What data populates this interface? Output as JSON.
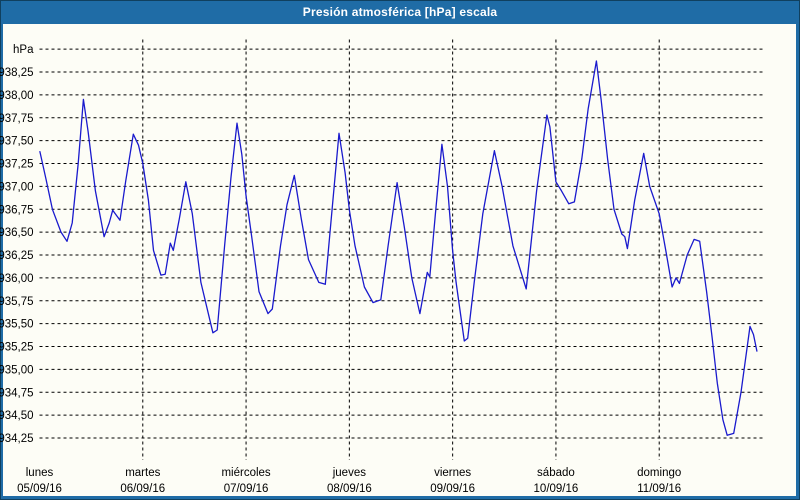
{
  "title_bar": {
    "title": "Presión atmosférica [hPa] escala"
  },
  "colors": {
    "titlebar_bg": "#1f6ca6",
    "titlebar_text": "#ffffff",
    "panel_bg": "#fdfdf6",
    "frame": "#1f6ca6",
    "line": "#1a1acd",
    "grid": "#000000",
    "text": "#000000"
  },
  "chart_data": {
    "type": "line",
    "title": "Presión atmosférica [hPa] escala",
    "ylabel": "hPa",
    "ylim": [
      934.0,
      938.6
    ],
    "grid": "dashed",
    "legend": "none",
    "x_hours_total": 168,
    "ygridlines": [
      938.5,
      938.25,
      938.0,
      937.75,
      937.5,
      937.25,
      937.0,
      936.75,
      936.5,
      936.25,
      936.0,
      935.75,
      935.5,
      935.25,
      935.0,
      934.75,
      934.5,
      934.25
    ],
    "yticks": [
      {
        "value": 938.25,
        "label": "938,25"
      },
      {
        "value": 938.0,
        "label": "938,00"
      },
      {
        "value": 937.75,
        "label": "937,75"
      },
      {
        "value": 937.5,
        "label": "937,50"
      },
      {
        "value": 937.25,
        "label": "937,25"
      },
      {
        "value": 937.0,
        "label": "937,00"
      },
      {
        "value": 936.75,
        "label": "936,75"
      },
      {
        "value": 936.5,
        "label": "936,50"
      },
      {
        "value": 936.25,
        "label": "936,25"
      },
      {
        "value": 936.0,
        "label": "936,00"
      },
      {
        "value": 935.75,
        "label": "935,75"
      },
      {
        "value": 935.5,
        "label": "935,50"
      },
      {
        "value": 935.25,
        "label": "935,25"
      },
      {
        "value": 935.0,
        "label": "935,00"
      },
      {
        "value": 934.75,
        "label": "934,75"
      },
      {
        "value": 934.5,
        "label": "934,50"
      },
      {
        "value": 934.25,
        "label": "934,25"
      }
    ],
    "x_days": [
      {
        "name": "lunes",
        "date": "05/09/16"
      },
      {
        "name": "martes",
        "date": "06/09/16"
      },
      {
        "name": "miércoles",
        "date": "07/09/16"
      },
      {
        "name": "jueves",
        "date": "08/09/16"
      },
      {
        "name": "viernes",
        "date": "09/09/16"
      },
      {
        "name": "sábado",
        "date": "10/09/16"
      },
      {
        "name": "domingo",
        "date": "11/09/16"
      }
    ],
    "series": [
      {
        "name": "Presión atmosférica [hPa]",
        "color": "#1a1acd",
        "points": [
          [
            0.1,
            937.38
          ],
          [
            1.5,
            937.08
          ],
          [
            3.0,
            936.75
          ],
          [
            5.0,
            936.5
          ],
          [
            6.4,
            936.4
          ],
          [
            7.6,
            936.6
          ],
          [
            9.0,
            937.25
          ],
          [
            10.2,
            937.95
          ],
          [
            11.3,
            937.6
          ],
          [
            13.0,
            936.95
          ],
          [
            15.0,
            936.45
          ],
          [
            16.2,
            936.6
          ],
          [
            17.0,
            936.74
          ],
          [
            18.7,
            936.63
          ],
          [
            20.0,
            937.05
          ],
          [
            21.8,
            937.57
          ],
          [
            23.0,
            937.45
          ],
          [
            24.0,
            937.25
          ],
          [
            25.3,
            936.85
          ],
          [
            26.5,
            936.3
          ],
          [
            28.2,
            936.03
          ],
          [
            29.2,
            936.04
          ],
          [
            30.4,
            936.38
          ],
          [
            31.1,
            936.3
          ],
          [
            32.5,
            936.65
          ],
          [
            34.0,
            937.05
          ],
          [
            35.5,
            936.7
          ],
          [
            37.5,
            935.95
          ],
          [
            40.3,
            935.4
          ],
          [
            41.3,
            935.43
          ],
          [
            43.0,
            936.35
          ],
          [
            44.5,
            937.1
          ],
          [
            45.9,
            937.69
          ],
          [
            47.0,
            937.35
          ],
          [
            48.0,
            936.89
          ],
          [
            49.3,
            936.45
          ],
          [
            51.0,
            935.85
          ],
          [
            53.1,
            935.61
          ],
          [
            54.1,
            935.66
          ],
          [
            56.0,
            936.35
          ],
          [
            57.5,
            936.8
          ],
          [
            59.2,
            937.12
          ],
          [
            60.8,
            936.65
          ],
          [
            62.5,
            936.2
          ],
          [
            64.9,
            935.95
          ],
          [
            66.4,
            935.93
          ],
          [
            68.0,
            936.75
          ],
          [
            69.6,
            937.58
          ],
          [
            71.0,
            937.15
          ],
          [
            72.0,
            936.74
          ],
          [
            73.3,
            936.35
          ],
          [
            75.5,
            935.9
          ],
          [
            77.5,
            935.73
          ],
          [
            79.3,
            935.76
          ],
          [
            81.0,
            936.35
          ],
          [
            83.1,
            937.04
          ],
          [
            84.8,
            936.55
          ],
          [
            86.5,
            936.0
          ],
          [
            88.4,
            935.61
          ],
          [
            90.1,
            936.06
          ],
          [
            90.7,
            936.01
          ],
          [
            92.0,
            936.7
          ],
          [
            93.5,
            937.46
          ],
          [
            94.8,
            937.0
          ],
          [
            96.0,
            936.3
          ],
          [
            96.8,
            935.95
          ],
          [
            98.7,
            935.31
          ],
          [
            99.5,
            935.34
          ],
          [
            101.0,
            935.95
          ],
          [
            103.0,
            936.7
          ],
          [
            105.7,
            937.39
          ],
          [
            107.5,
            937.0
          ],
          [
            110.0,
            936.35
          ],
          [
            113.1,
            935.88
          ],
          [
            115.5,
            936.95
          ],
          [
            117.9,
            937.78
          ],
          [
            118.6,
            937.65
          ],
          [
            120.0,
            937.05
          ],
          [
            121.3,
            936.95
          ],
          [
            123.0,
            936.81
          ],
          [
            124.3,
            936.83
          ],
          [
            126.0,
            937.3
          ],
          [
            127.5,
            937.85
          ],
          [
            129.4,
            938.37
          ],
          [
            130.5,
            937.95
          ],
          [
            132.0,
            937.3
          ],
          [
            133.5,
            936.75
          ],
          [
            135.3,
            936.48
          ],
          [
            136.0,
            936.45
          ],
          [
            136.6,
            936.32
          ],
          [
            138.3,
            936.85
          ],
          [
            140.4,
            937.36
          ],
          [
            141.8,
            937.0
          ],
          [
            144.0,
            936.7
          ],
          [
            145.6,
            936.28
          ],
          [
            147.0,
            935.9
          ],
          [
            147.9,
            936.0
          ],
          [
            148.7,
            935.94
          ],
          [
            150.5,
            936.25
          ],
          [
            152.1,
            936.42
          ],
          [
            153.4,
            936.4
          ],
          [
            155.0,
            935.85
          ],
          [
            156.3,
            935.35
          ],
          [
            157.5,
            934.85
          ],
          [
            158.8,
            934.45
          ],
          [
            159.8,
            934.28
          ],
          [
            161.3,
            934.3
          ],
          [
            163.0,
            934.75
          ],
          [
            165.1,
            935.47
          ],
          [
            165.9,
            935.38
          ],
          [
            166.7,
            935.2
          ]
        ]
      }
    ]
  }
}
